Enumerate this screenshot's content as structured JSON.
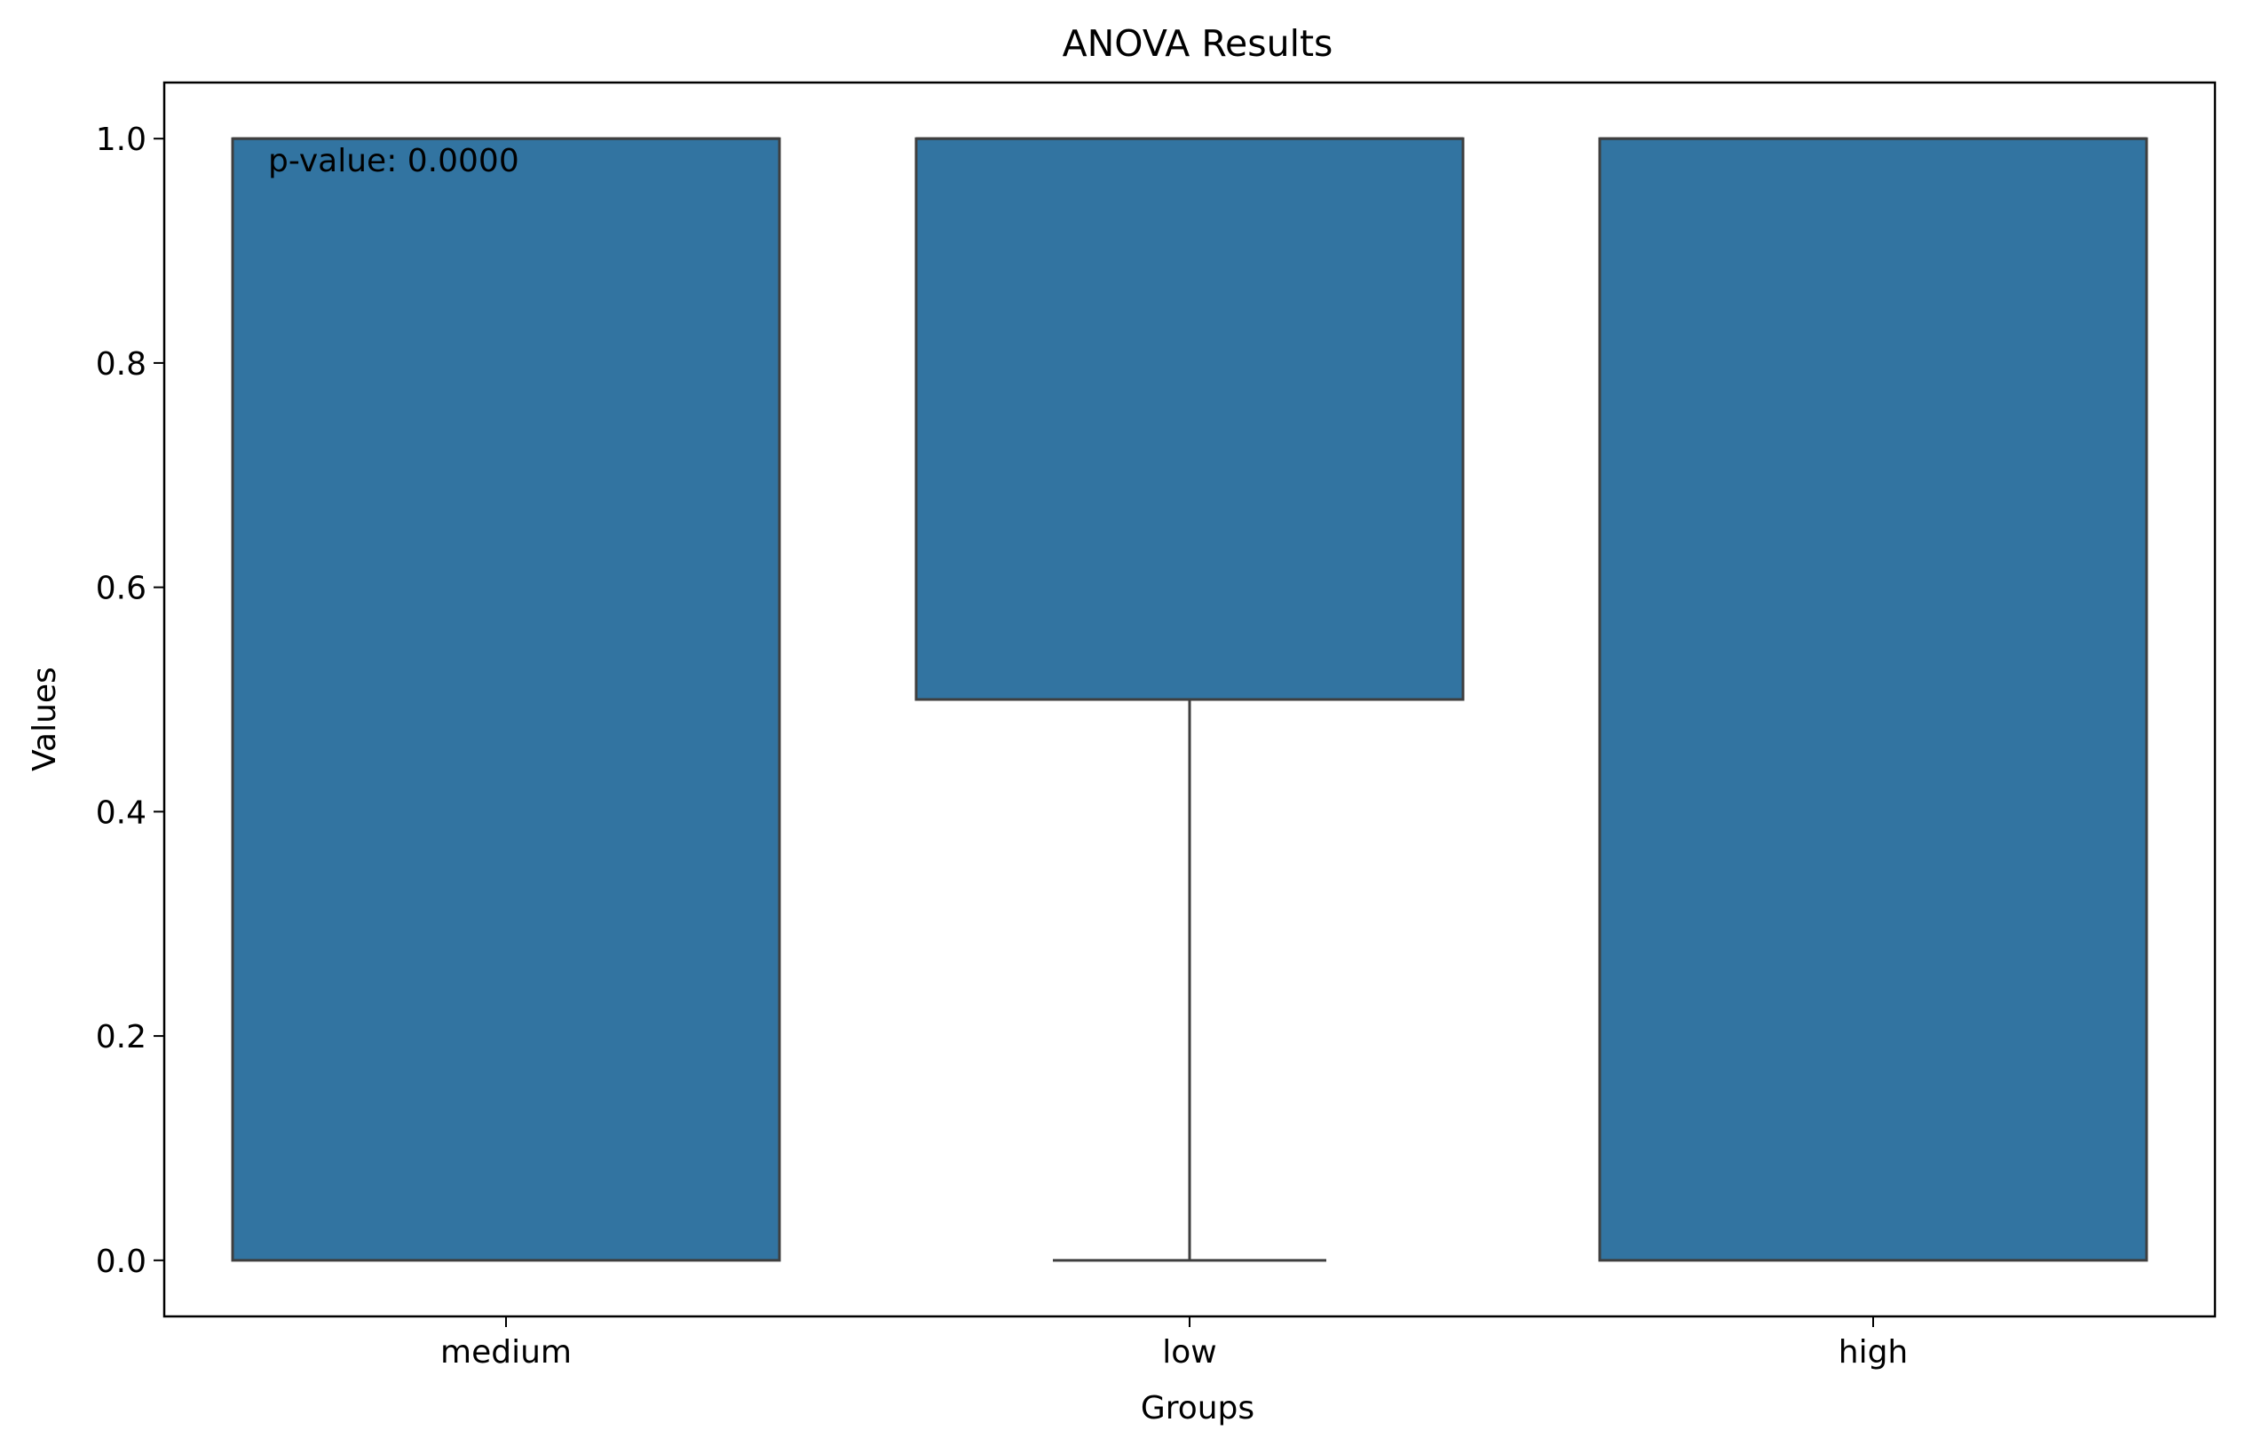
{
  "chart_data": {
    "type": "box",
    "title": "ANOVA Results",
    "xlabel": "Groups",
    "ylabel": "Values",
    "categories": [
      "medium",
      "low",
      "high"
    ],
    "boxes": [
      {
        "category": "medium",
        "whisker_low": 0.0,
        "q1": 0.0,
        "median": 1.0,
        "q3": 1.0,
        "whisker_high": 1.0
      },
      {
        "category": "low",
        "whisker_low": 0.0,
        "q1": 0.5,
        "median": 1.0,
        "q3": 1.0,
        "whisker_high": 1.0
      },
      {
        "category": "high",
        "whisker_low": 0.0,
        "q1": 0.0,
        "median": 1.0,
        "q3": 1.0,
        "whisker_high": 1.0
      }
    ],
    "ylim": [
      -0.05,
      1.05
    ],
    "yticks": [
      0.0,
      0.2,
      0.4,
      0.6,
      0.8,
      1.0
    ],
    "ytick_labels": [
      "0.0",
      "0.2",
      "0.4",
      "0.6",
      "0.8",
      "1.0"
    ],
    "grid": false,
    "annotation": "p-value: 0.0000",
    "box_color": "#3274a1",
    "edge_color": "#3f3f3f"
  }
}
